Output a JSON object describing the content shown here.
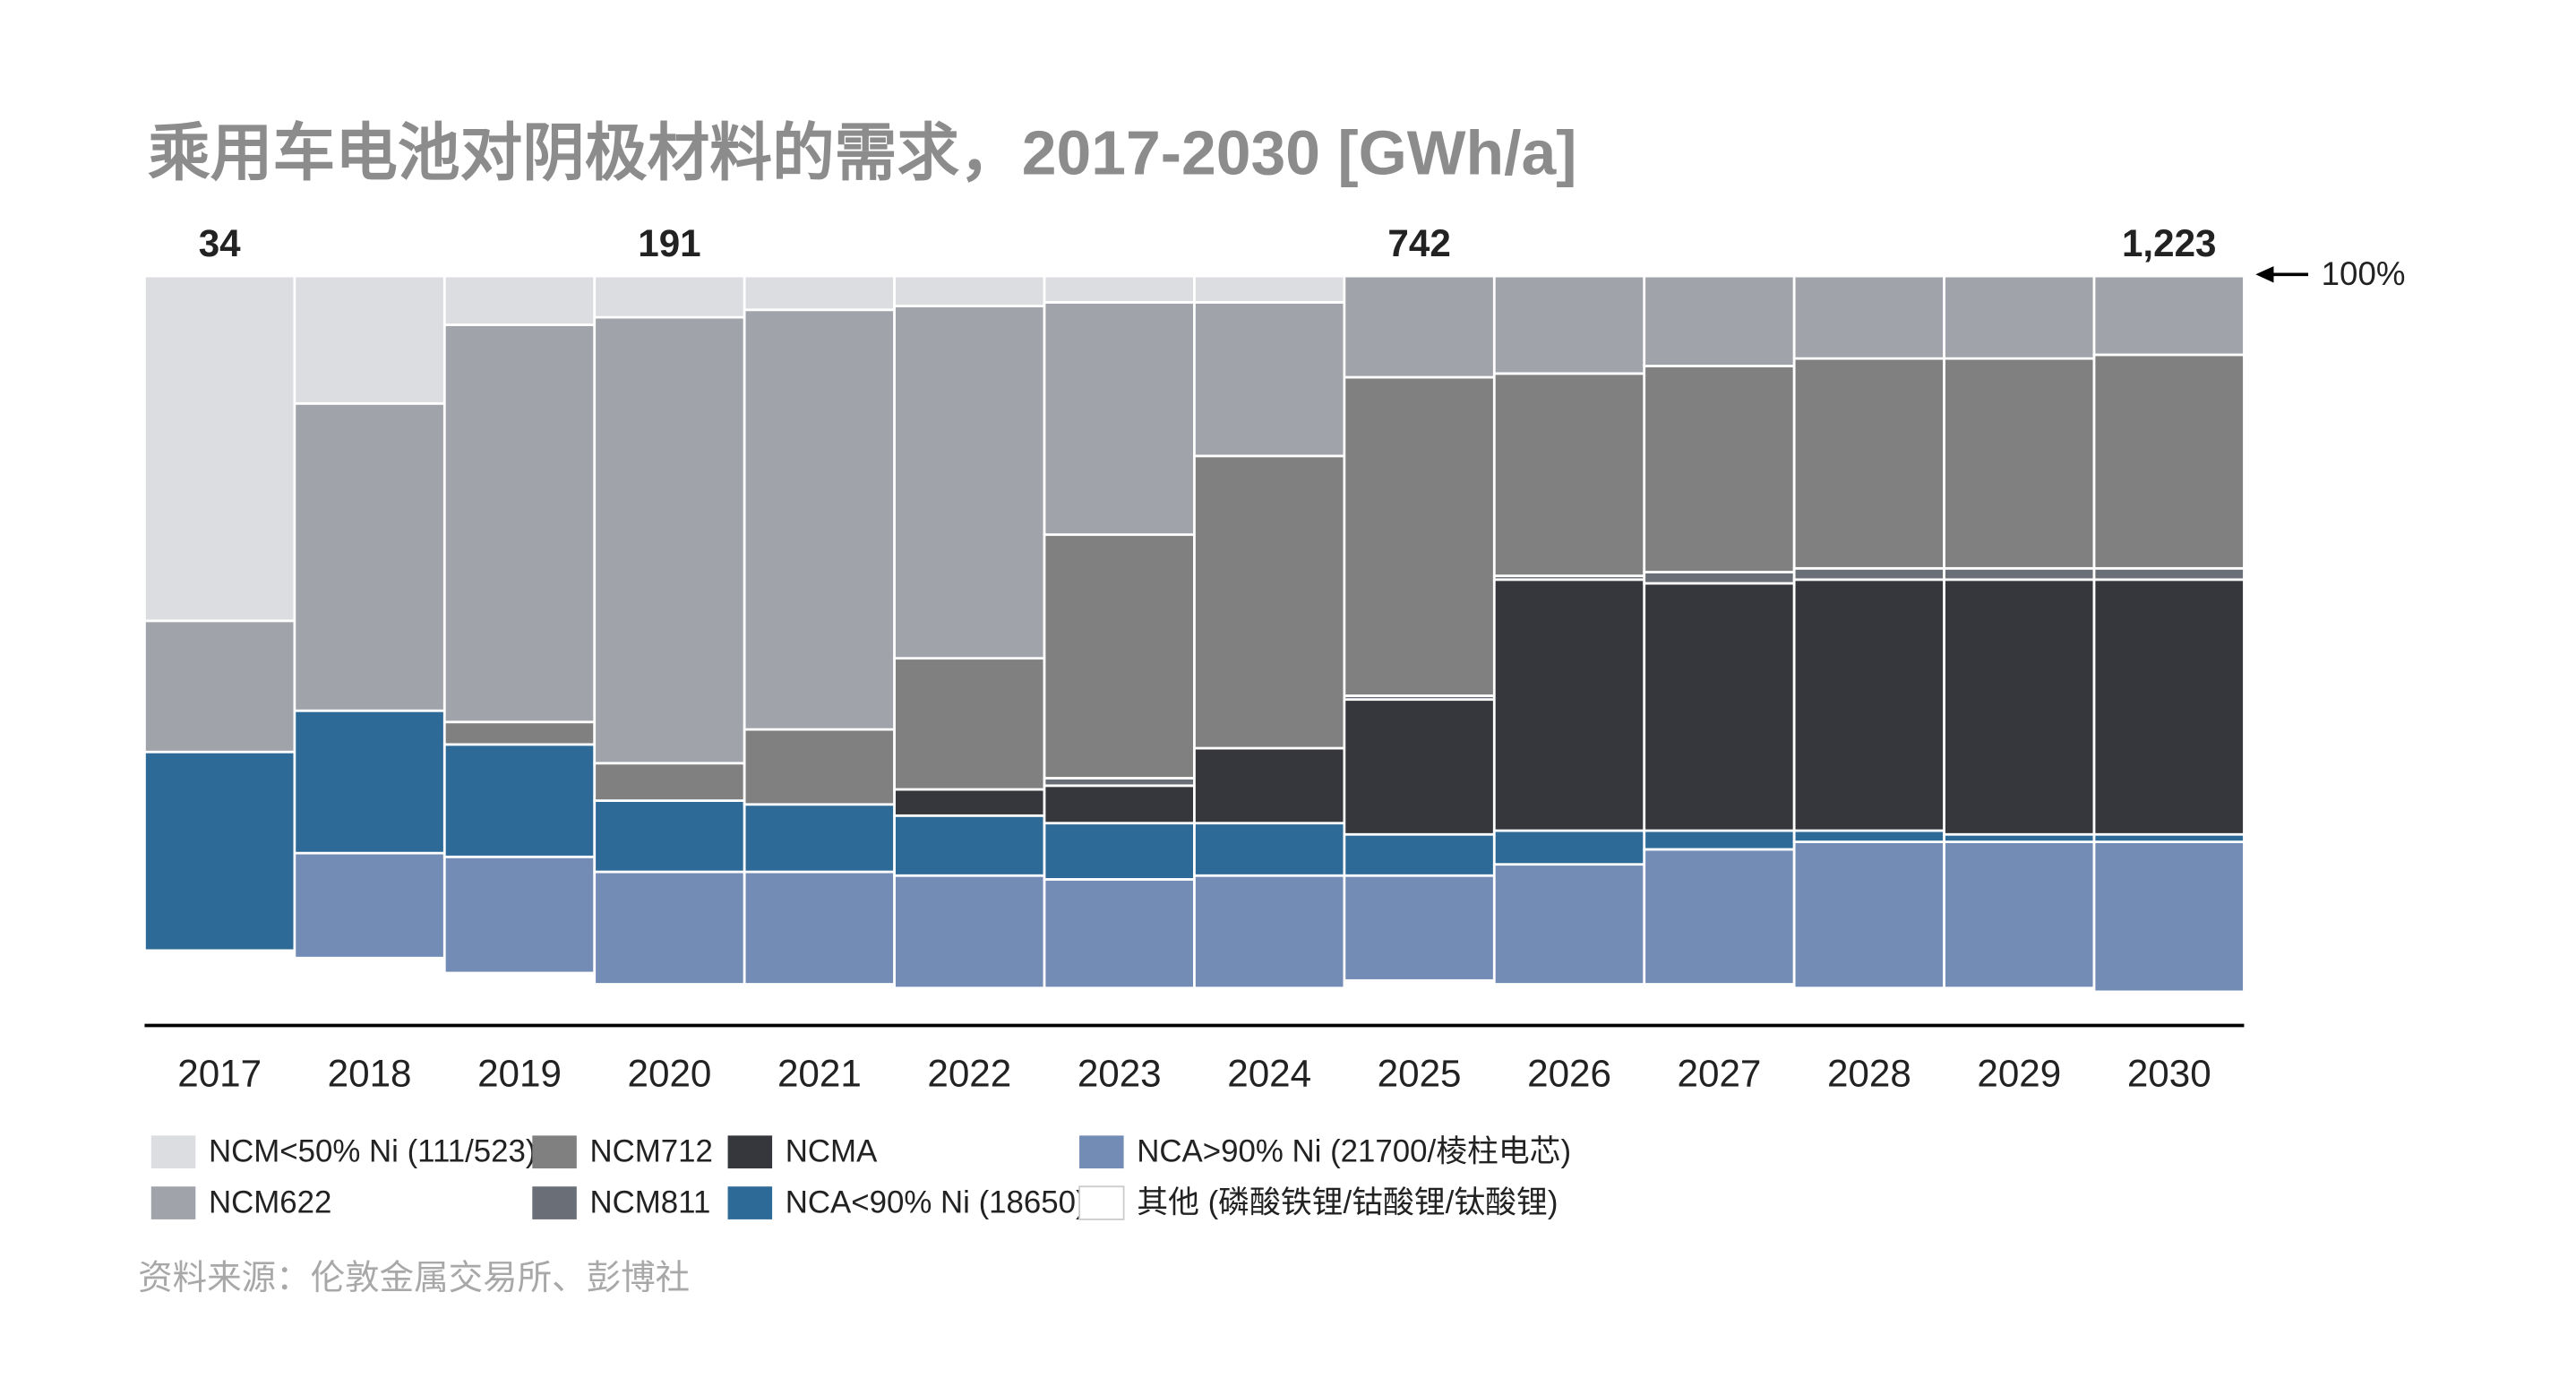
{
  "chart_data": {
    "type": "stacked_bar_100",
    "title": "乘用车电池对阴极材料的需求，2017-2030 [GWh/a]",
    "categories": [
      "2017",
      "2018",
      "2019",
      "2020",
      "2021",
      "2022",
      "2023",
      "2024",
      "2025",
      "2026",
      "2027",
      "2028",
      "2029",
      "2030"
    ],
    "series": [
      {
        "name": "其他 (磷酸铁锂/钴酸锂/钛酸锂)",
        "color": "#ffffff",
        "values": [
          10,
          9,
          7,
          5.5,
          5.5,
          5,
          5,
          5,
          6,
          5.5,
          5.5,
          5,
          5,
          4.5
        ]
      },
      {
        "name": "NCA>90% Ni (21700/棱柱电芯)",
        "color": "#738cb5",
        "values": [
          0,
          14,
          15.5,
          15,
          15,
          15,
          14.5,
          15,
          14,
          16,
          18,
          19.5,
          19.5,
          20
        ]
      },
      {
        "name": "NCA<90% Ni (18650)",
        "color": "#2e6a97",
        "values": [
          26.5,
          19,
          15,
          9.5,
          9,
          8,
          7.5,
          7,
          5.5,
          4.5,
          2.5,
          1.5,
          1,
          1
        ]
      },
      {
        "name": "NCMA",
        "color": "#36373c",
        "values": [
          0,
          0,
          0,
          0,
          0,
          3.5,
          5,
          10,
          18,
          33.5,
          33,
          33.5,
          34,
          34
        ]
      },
      {
        "name": "NCM811",
        "color": "#6a6e76",
        "values": [
          0,
          0,
          0,
          0,
          0,
          0,
          1,
          0,
          0.5,
          0.5,
          1.5,
          1.5,
          1.5,
          1.5
        ]
      },
      {
        "name": "NCM712",
        "color": "#808080",
        "values": [
          0,
          0,
          3,
          5,
          10,
          17.5,
          32.5,
          39,
          42.5,
          27,
          27.5,
          28,
          28,
          28.5
        ]
      },
      {
        "name": "NCM622",
        "color": "#a0a3aa",
        "values": [
          17.5,
          41,
          53,
          59.5,
          56,
          47,
          31,
          20.5,
          13.5,
          13,
          12,
          11,
          11,
          10.5
        ]
      },
      {
        "name": "NCM<50% Ni (111/523)",
        "color": "#dcdde1",
        "values": [
          46,
          17,
          6.5,
          5.5,
          4.5,
          4,
          3.5,
          3.5,
          0,
          0,
          0,
          0,
          0,
          0
        ]
      }
    ],
    "totals": [
      34,
      null,
      null,
      191,
      null,
      null,
      null,
      null,
      742,
      null,
      null,
      null,
      null,
      {
        "value": 1223,
        "label": "1,223"
      }
    ],
    "ylim": [
      0,
      100
    ],
    "annotation": "100%",
    "source": "资料来源：伦敦金属交易所、彭博社"
  }
}
